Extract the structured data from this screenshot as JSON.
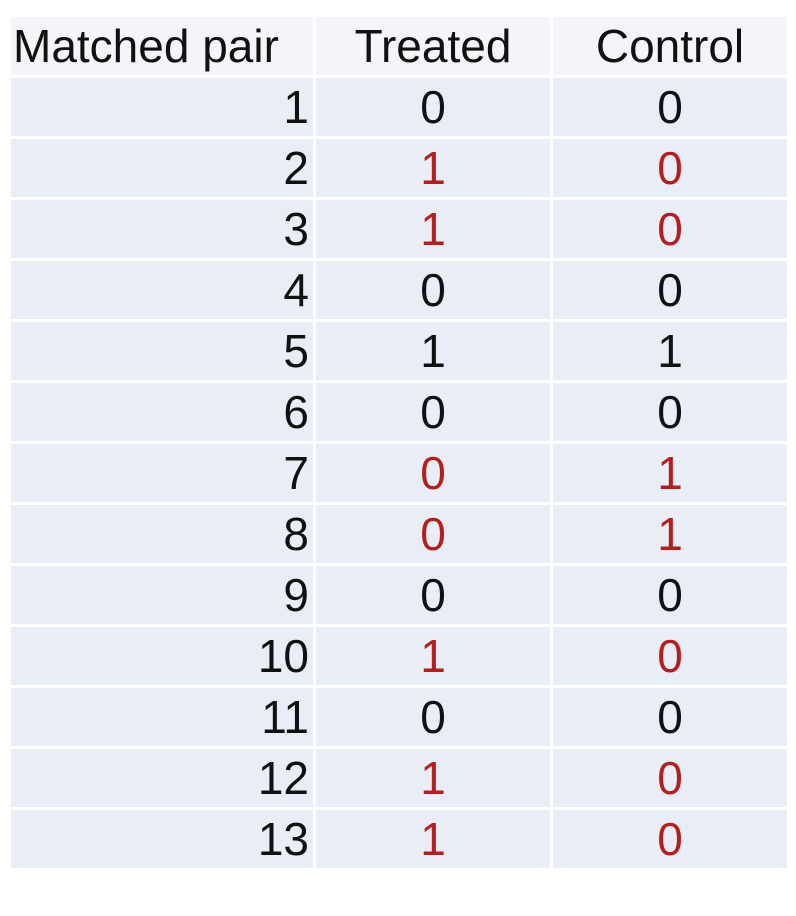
{
  "table": {
    "headers": [
      "Matched pair",
      "Treated",
      "Control"
    ],
    "rows": [
      {
        "pair": "1",
        "treated": "0",
        "control": "0",
        "discordant": false
      },
      {
        "pair": "2",
        "treated": "1",
        "control": "0",
        "discordant": true
      },
      {
        "pair": "3",
        "treated": "1",
        "control": "0",
        "discordant": true
      },
      {
        "pair": "4",
        "treated": "0",
        "control": "0",
        "discordant": false
      },
      {
        "pair": "5",
        "treated": "1",
        "control": "1",
        "discordant": false
      },
      {
        "pair": "6",
        "treated": "0",
        "control": "0",
        "discordant": false
      },
      {
        "pair": "7",
        "treated": "0",
        "control": "1",
        "discordant": true
      },
      {
        "pair": "8",
        "treated": "0",
        "control": "1",
        "discordant": true
      },
      {
        "pair": "9",
        "treated": "0",
        "control": "0",
        "discordant": false
      },
      {
        "pair": "10",
        "treated": "1",
        "control": "0",
        "discordant": true
      },
      {
        "pair": "11",
        "treated": "0",
        "control": "0",
        "discordant": false
      },
      {
        "pair": "12",
        "treated": "1",
        "control": "0",
        "discordant": true
      },
      {
        "pair": "13",
        "treated": "1",
        "control": "0",
        "discordant": true
      }
    ]
  },
  "colors": {
    "cell_background": "#e9eef6",
    "header_background": "#f3f5f9",
    "discordant_text": "#b41e1e",
    "normal_text": "#111111"
  }
}
